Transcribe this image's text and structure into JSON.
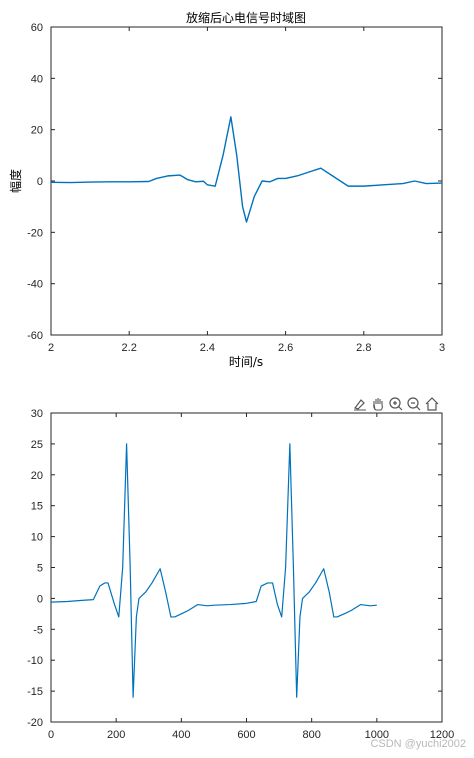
{
  "toolbar": {
    "icons": [
      "brush-icon",
      "pan-icon",
      "zoom-in-icon",
      "zoom-out-icon",
      "home-icon"
    ]
  },
  "watermark": "CSDN @yuchi2002",
  "chart_data": [
    {
      "type": "line",
      "title": "放缩后心电信号时域图",
      "xlabel": "时间/s",
      "ylabel": "幅度",
      "xlim": [
        2,
        3
      ],
      "ylim": [
        -60,
        60
      ],
      "xticks": [
        2,
        2.2,
        2.4,
        2.6,
        2.8,
        3
      ],
      "xtick_labels": [
        "2",
        "2.2",
        "2.4",
        "2.6",
        "2.8",
        "3"
      ],
      "yticks": [
        -60,
        -40,
        -20,
        0,
        20,
        40,
        60
      ],
      "ytick_labels": [
        "-60",
        "-40",
        "-20",
        "0",
        "20",
        "40",
        "60"
      ],
      "color": "#0072BD",
      "grid": false,
      "x": [
        2.0,
        2.05,
        2.1,
        2.15,
        2.2,
        2.25,
        2.27,
        2.3,
        2.33,
        2.35,
        2.37,
        2.39,
        2.4,
        2.42,
        2.44,
        2.46,
        2.475,
        2.49,
        2.5,
        2.52,
        2.54,
        2.56,
        2.58,
        2.6,
        2.63,
        2.66,
        2.69,
        2.72,
        2.76,
        2.8,
        2.85,
        2.9,
        2.93,
        2.96,
        3.0
      ],
      "y": [
        -0.5,
        -0.6,
        -0.4,
        -0.3,
        -0.3,
        -0.2,
        1.0,
        2.0,
        2.3,
        0.5,
        -0.3,
        -0.1,
        -1.5,
        -2.0,
        10.0,
        25.0,
        10.0,
        -10.0,
        -16.0,
        -6.0,
        0.0,
        -0.3,
        1.0,
        1.0,
        2.0,
        3.5,
        5.0,
        2.0,
        -2.0,
        -2.0,
        -1.5,
        -1.0,
        0.0,
        -1.0,
        -0.8
      ]
    },
    {
      "type": "line",
      "title": "",
      "xlabel": "",
      "ylabel": "",
      "xlim": [
        0,
        1200
      ],
      "ylim": [
        -20,
        30
      ],
      "xticks": [
        0,
        200,
        400,
        600,
        800,
        1000,
        1200
      ],
      "xtick_labels": [
        "0",
        "200",
        "400",
        "600",
        "800",
        "1000",
        "1200"
      ],
      "yticks": [
        -20,
        -15,
        -10,
        -5,
        0,
        5,
        10,
        15,
        20,
        25,
        30
      ],
      "ytick_labels": [
        "-20",
        "-15",
        "-10",
        "-5",
        "0",
        "5",
        "10",
        "15",
        "20",
        "25",
        "30"
      ],
      "color": "#0072BD",
      "grid": false,
      "x": [
        0,
        50,
        100,
        130,
        150,
        165,
        175,
        195,
        208,
        220,
        232,
        243,
        252,
        262,
        270,
        290,
        310,
        335,
        352,
        368,
        380,
        400,
        420,
        450,
        480,
        500,
        550,
        600,
        630,
        645,
        665,
        680,
        695,
        708,
        720,
        733,
        744,
        754,
        764,
        772,
        792,
        812,
        837,
        854,
        868,
        878,
        900,
        920,
        950,
        980,
        1000
      ],
      "y": [
        -0.6,
        -0.5,
        -0.3,
        -0.2,
        2.0,
        2.5,
        2.5,
        -1.0,
        -3.0,
        5.0,
        25.0,
        5.0,
        -16.0,
        -3.0,
        0.0,
        1.0,
        2.5,
        4.8,
        1.0,
        -3.0,
        -3.0,
        -2.5,
        -2.0,
        -1.0,
        -1.2,
        -1.1,
        -1.0,
        -0.8,
        -0.5,
        2.0,
        2.5,
        2.5,
        -1.0,
        -3.0,
        5.0,
        25.0,
        5.0,
        -16.0,
        -3.0,
        0.0,
        1.0,
        2.5,
        4.8,
        1.0,
        -3.0,
        -3.0,
        -2.5,
        -2.0,
        -1.0,
        -1.2,
        -1.1
      ]
    }
  ]
}
